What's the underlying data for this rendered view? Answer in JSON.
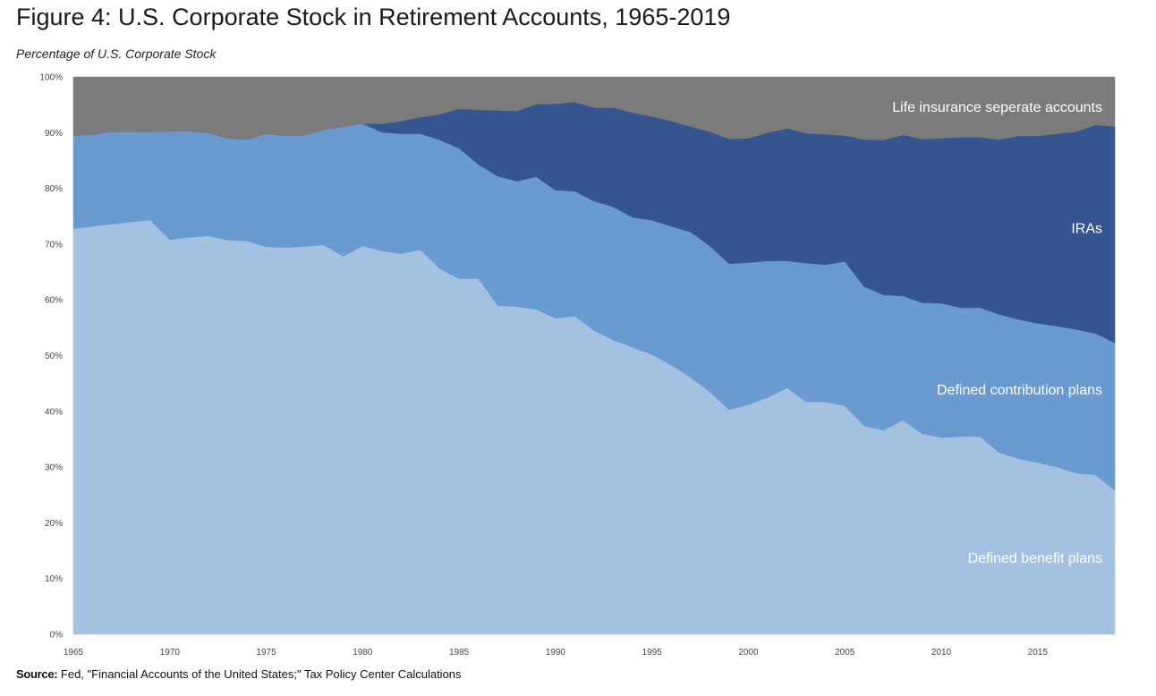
{
  "figure": {
    "title": "Figure 4: U.S. Corporate Stock in Retirement Accounts, 1965-2019",
    "subtitle": "Percentage of U.S. Corporate Stock"
  },
  "source": {
    "label": "Source:",
    "text": " Fed, \"Financial Accounts of the United States;\" Tax Policy Center Calculations"
  },
  "chart_data": {
    "type": "area",
    "stacked": true,
    "x_range": [
      1965,
      2019
    ],
    "x_ticks": [
      "1965",
      "1970",
      "1975",
      "1980",
      "1985",
      "1990",
      "1995",
      "2000",
      "2005",
      "2010",
      "2015"
    ],
    "x_tick_values": [
      1965,
      1970,
      1975,
      1980,
      1985,
      1990,
      1995,
      2000,
      2005,
      2010,
      2015
    ],
    "ylim": [
      0,
      100
    ],
    "y_ticks": [
      "0%",
      "10%",
      "20%",
      "30%",
      "40%",
      "50%",
      "60%",
      "70%",
      "80%",
      "90%",
      "100%"
    ],
    "y_tick_values": [
      0,
      10,
      20,
      30,
      40,
      50,
      60,
      70,
      80,
      90,
      100
    ],
    "grid": false,
    "legend": "inline labels on areas",
    "x": [
      1965,
      1966,
      1967,
      1968,
      1969,
      1970,
      1971,
      1972,
      1973,
      1974,
      1975,
      1976,
      1977,
      1978,
      1979,
      1980,
      1981,
      1982,
      1983,
      1984,
      1985,
      1986,
      1987,
      1988,
      1989,
      1990,
      1991,
      1992,
      1993,
      1994,
      1995,
      1996,
      1997,
      1998,
      1999,
      2000,
      2001,
      2002,
      2003,
      2004,
      2005,
      2006,
      2007,
      2008,
      2009,
      2010,
      2011,
      2012,
      2013,
      2014,
      2015,
      2016,
      2017,
      2018,
      2019
    ],
    "series": [
      {
        "name": "Defined benefit plans",
        "color": "#a4c1e2",
        "values": [
          72.8,
          73.2,
          73.6,
          74.0,
          74.3,
          70.8,
          71.2,
          71.5,
          70.7,
          70.6,
          69.5,
          69.4,
          69.6,
          69.8,
          67.8,
          69.7,
          68.8,
          68.3,
          69.0,
          65.6,
          63.8,
          63.8,
          59.0,
          58.8,
          58.3,
          56.7,
          57.1,
          54.5,
          52.8,
          51.5,
          50.2,
          48.3,
          46.1,
          43.5,
          40.3,
          41.2,
          42.5,
          44.2,
          41.7,
          41.7,
          41.0,
          37.4,
          36.6,
          38.4,
          36.0,
          35.3,
          35.5,
          35.5,
          32.6,
          31.5,
          30.8,
          30.0,
          28.9,
          28.6,
          25.8
        ]
      },
      {
        "name": "Defined contribution plans",
        "color": "#6a9bd0",
        "values": [
          16.7,
          16.5,
          16.6,
          16.2,
          15.8,
          19.5,
          19.1,
          18.5,
          18.3,
          18.2,
          20.3,
          20.0,
          20.0,
          20.7,
          23.3,
          21.9,
          21.3,
          21.5,
          20.8,
          23.1,
          23.4,
          20.5,
          23.2,
          22.5,
          23.8,
          23.0,
          22.4,
          23.2,
          23.9,
          23.3,
          24.1,
          24.9,
          26.1,
          26.2,
          26.2,
          25.5,
          24.5,
          22.8,
          24.9,
          24.6,
          25.9,
          25.0,
          24.3,
          22.3,
          23.5,
          24.1,
          23.1,
          23.1,
          24.8,
          25.0,
          25.0,
          25.3,
          25.8,
          25.4,
          26.5
        ]
      },
      {
        "name": "IRAs",
        "color": "#355591",
        "values": [
          0,
          0,
          0,
          0,
          0,
          0,
          0,
          0,
          0,
          0,
          0,
          0,
          0,
          0,
          0,
          0,
          1.5,
          2.3,
          3.0,
          4.6,
          7.1,
          9.8,
          11.8,
          12.6,
          13.0,
          15.5,
          16.0,
          16.8,
          17.8,
          18.8,
          18.6,
          18.9,
          18.9,
          20.5,
          22.4,
          22.3,
          23.0,
          23.8,
          23.3,
          23.4,
          22.6,
          26.4,
          27.8,
          28.9,
          29.4,
          29.6,
          30.6,
          30.6,
          31.4,
          32.9,
          33.6,
          34.5,
          35.5,
          37.4,
          38.8
        ]
      },
      {
        "name": "Life insurance seperate accounts",
        "color": "#7b7b7b",
        "values": [
          10.5,
          10.3,
          9.8,
          9.8,
          9.9,
          9.7,
          9.7,
          10.0,
          11.0,
          11.2,
          10.2,
          10.6,
          10.4,
          9.5,
          8.9,
          8.4,
          8.4,
          7.9,
          7.2,
          6.7,
          5.7,
          5.9,
          6.0,
          6.1,
          4.9,
          4.8,
          4.5,
          5.5,
          5.5,
          6.4,
          7.1,
          7.9,
          8.9,
          9.8,
          11.1,
          11.0,
          10.0,
          9.2,
          10.1,
          10.3,
          10.5,
          11.2,
          11.3,
          10.4,
          11.1,
          11.0,
          10.8,
          10.8,
          11.2,
          10.6,
          10.6,
          10.2,
          9.8,
          8.6,
          8.9
        ]
      }
    ]
  }
}
